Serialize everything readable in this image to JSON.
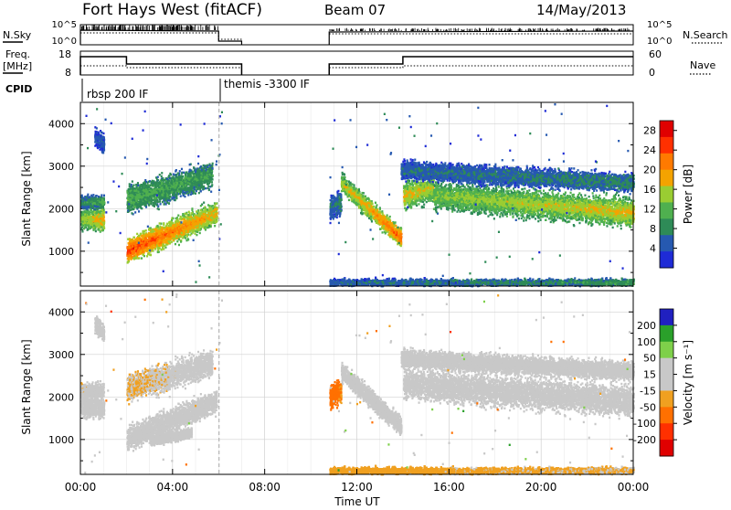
{
  "header": {
    "station": "Fort Hays West (fitACF)",
    "beam": "Beam 07",
    "date": "14/May/2013"
  },
  "status_labels": {
    "nsky": "N.Sky",
    "nsky_ticks": [
      "10^5",
      "10^0"
    ],
    "nsearch": "N.Search",
    "nsearch_ticks": [
      "10^5",
      "10^0"
    ],
    "freq_line1": "Freq.",
    "freq_line2": "[MHz]",
    "freq_ticks": [
      "18",
      "8"
    ],
    "nave": "Nave",
    "nave_ticks": [
      "60",
      "0"
    ],
    "cpid": "CPID",
    "cpid_entries": [
      "rbsp 200 IF",
      "themis -3300 IF"
    ]
  },
  "colors": {
    "power": [
      "#1e2bd6",
      "#2659b0",
      "#2e8b57",
      "#4fb04f",
      "#9acd32",
      "#f4a300",
      "#ff7a00",
      "#ff3000",
      "#e00000"
    ],
    "velocity": [
      "#2020c0",
      "#2aa02a",
      "#7ed04a",
      "#c8c8c8",
      "#c8c8c8",
      "#f0a020",
      "#ff7000",
      "#ff3000",
      "#e00000"
    ]
  },
  "chart_data": [
    {
      "type": "heatmap",
      "title": "",
      "xlabel": "",
      "ylabel": "Slant Range [km]",
      "x_ticks": [
        "00:00",
        "04:00",
        "08:00",
        "12:00",
        "16:00",
        "20:00",
        "00:00"
      ],
      "y_ticks": [
        "1000",
        "2000",
        "3000",
        "4000"
      ],
      "ylim": [
        180,
        4500
      ],
      "colorbar_label": "Power [dB]",
      "colorbar_ticks": [
        "4",
        "8",
        "12",
        "16",
        "20",
        "24",
        "28"
      ],
      "colorbar_range": [
        0,
        30
      ],
      "bands": [
        {
          "t": [
            0.0,
            1.0
          ],
          "center": [
            1750,
            1750
          ],
          "width": 350,
          "level": [
            14,
            20
          ]
        },
        {
          "t": [
            0.0,
            1.0
          ],
          "center": [
            2150,
            2150
          ],
          "width": 200,
          "level": [
            8,
            12
          ]
        },
        {
          "t": [
            0.6,
            1.0
          ],
          "center": [
            3700,
            3500
          ],
          "width": 300,
          "level": [
            4,
            6
          ]
        },
        {
          "t": [
            2.0,
            5.9
          ],
          "center": [
            1000,
            1900
          ],
          "width": 400,
          "level": [
            26,
            18
          ]
        },
        {
          "t": [
            2.0,
            5.7
          ],
          "center": [
            2200,
            2800
          ],
          "width": 450,
          "level": [
            12,
            10
          ]
        },
        {
          "t": [
            10.8,
            11.3
          ],
          "center": [
            2000,
            2150
          ],
          "width": 400,
          "level": [
            6,
            8
          ]
        },
        {
          "t": [
            11.3,
            13.9
          ],
          "center": [
            2600,
            1300
          ],
          "width": 300,
          "level": [
            16,
            24
          ]
        },
        {
          "t": [
            14.0,
            15.3
          ],
          "center": [
            2300,
            2500
          ],
          "width": 450,
          "level": [
            18,
            16
          ]
        },
        {
          "t": [
            15.3,
            23.99
          ],
          "center": [
            2300,
            1900
          ],
          "width": 450,
          "level": [
            14,
            18
          ]
        },
        {
          "t": [
            13.9,
            23.99
          ],
          "center": [
            2900,
            2600
          ],
          "width": 300,
          "level": [
            6,
            8
          ]
        },
        {
          "t": [
            10.8,
            23.99
          ],
          "center": [
            260,
            260
          ],
          "width": 120,
          "level": [
            6,
            10
          ]
        }
      ]
    },
    {
      "type": "heatmap",
      "title": "",
      "xlabel": "Time UT",
      "ylabel": "Slant Range [km]",
      "x_ticks": [
        "00:00",
        "04:00",
        "08:00",
        "12:00",
        "16:00",
        "20:00",
        "00:00"
      ],
      "y_ticks": [
        "1000",
        "2000",
        "3000",
        "4000"
      ],
      "ylim": [
        180,
        4500
      ],
      "colorbar_label": "Velocity [m s⁻¹]",
      "colorbar_ticks": [
        "200",
        "100",
        "50",
        "15",
        "-15",
        "-50",
        "-100",
        "-200"
      ],
      "colorbar_range": [
        -250,
        250
      ],
      "bands": [
        {
          "t": [
            0.0,
            1.0
          ],
          "center": [
            1750,
            1750
          ],
          "width": 350,
          "level": [
            0,
            0
          ]
        },
        {
          "t": [
            0.0,
            1.0
          ],
          "center": [
            2150,
            2150
          ],
          "width": 250,
          "level": [
            -20,
            -10
          ]
        },
        {
          "t": [
            0.6,
            1.0
          ],
          "center": [
            3700,
            3500
          ],
          "width": 300,
          "level": [
            0,
            0
          ]
        },
        {
          "t": [
            2.0,
            5.9
          ],
          "center": [
            1000,
            1900
          ],
          "width": 400,
          "level": [
            0,
            5
          ]
        },
        {
          "t": [
            2.0,
            5.7
          ],
          "center": [
            2200,
            2800
          ],
          "width": 450,
          "level": [
            -30,
            -10
          ]
        },
        {
          "t": [
            3.0,
            4.8
          ],
          "center": [
            950,
            1150
          ],
          "width": 150,
          "level": [
            50,
            40
          ]
        },
        {
          "t": [
            10.8,
            11.3
          ],
          "center": [
            2000,
            2150
          ],
          "width": 400,
          "level": [
            -120,
            -80
          ]
        },
        {
          "t": [
            11.3,
            13.9
          ],
          "center": [
            2600,
            1300
          ],
          "width": 300,
          "level": [
            40,
            5
          ]
        },
        {
          "t": [
            14.0,
            23.99
          ],
          "center": [
            2300,
            1900
          ],
          "width": 500,
          "level": [
            0,
            0
          ]
        },
        {
          "t": [
            13.9,
            23.99
          ],
          "center": [
            2900,
            2600
          ],
          "width": 300,
          "level": [
            0,
            0
          ]
        },
        {
          "t": [
            10.8,
            23.99
          ],
          "center": [
            260,
            260
          ],
          "width": 120,
          "level": [
            -40,
            -30
          ]
        }
      ]
    }
  ]
}
